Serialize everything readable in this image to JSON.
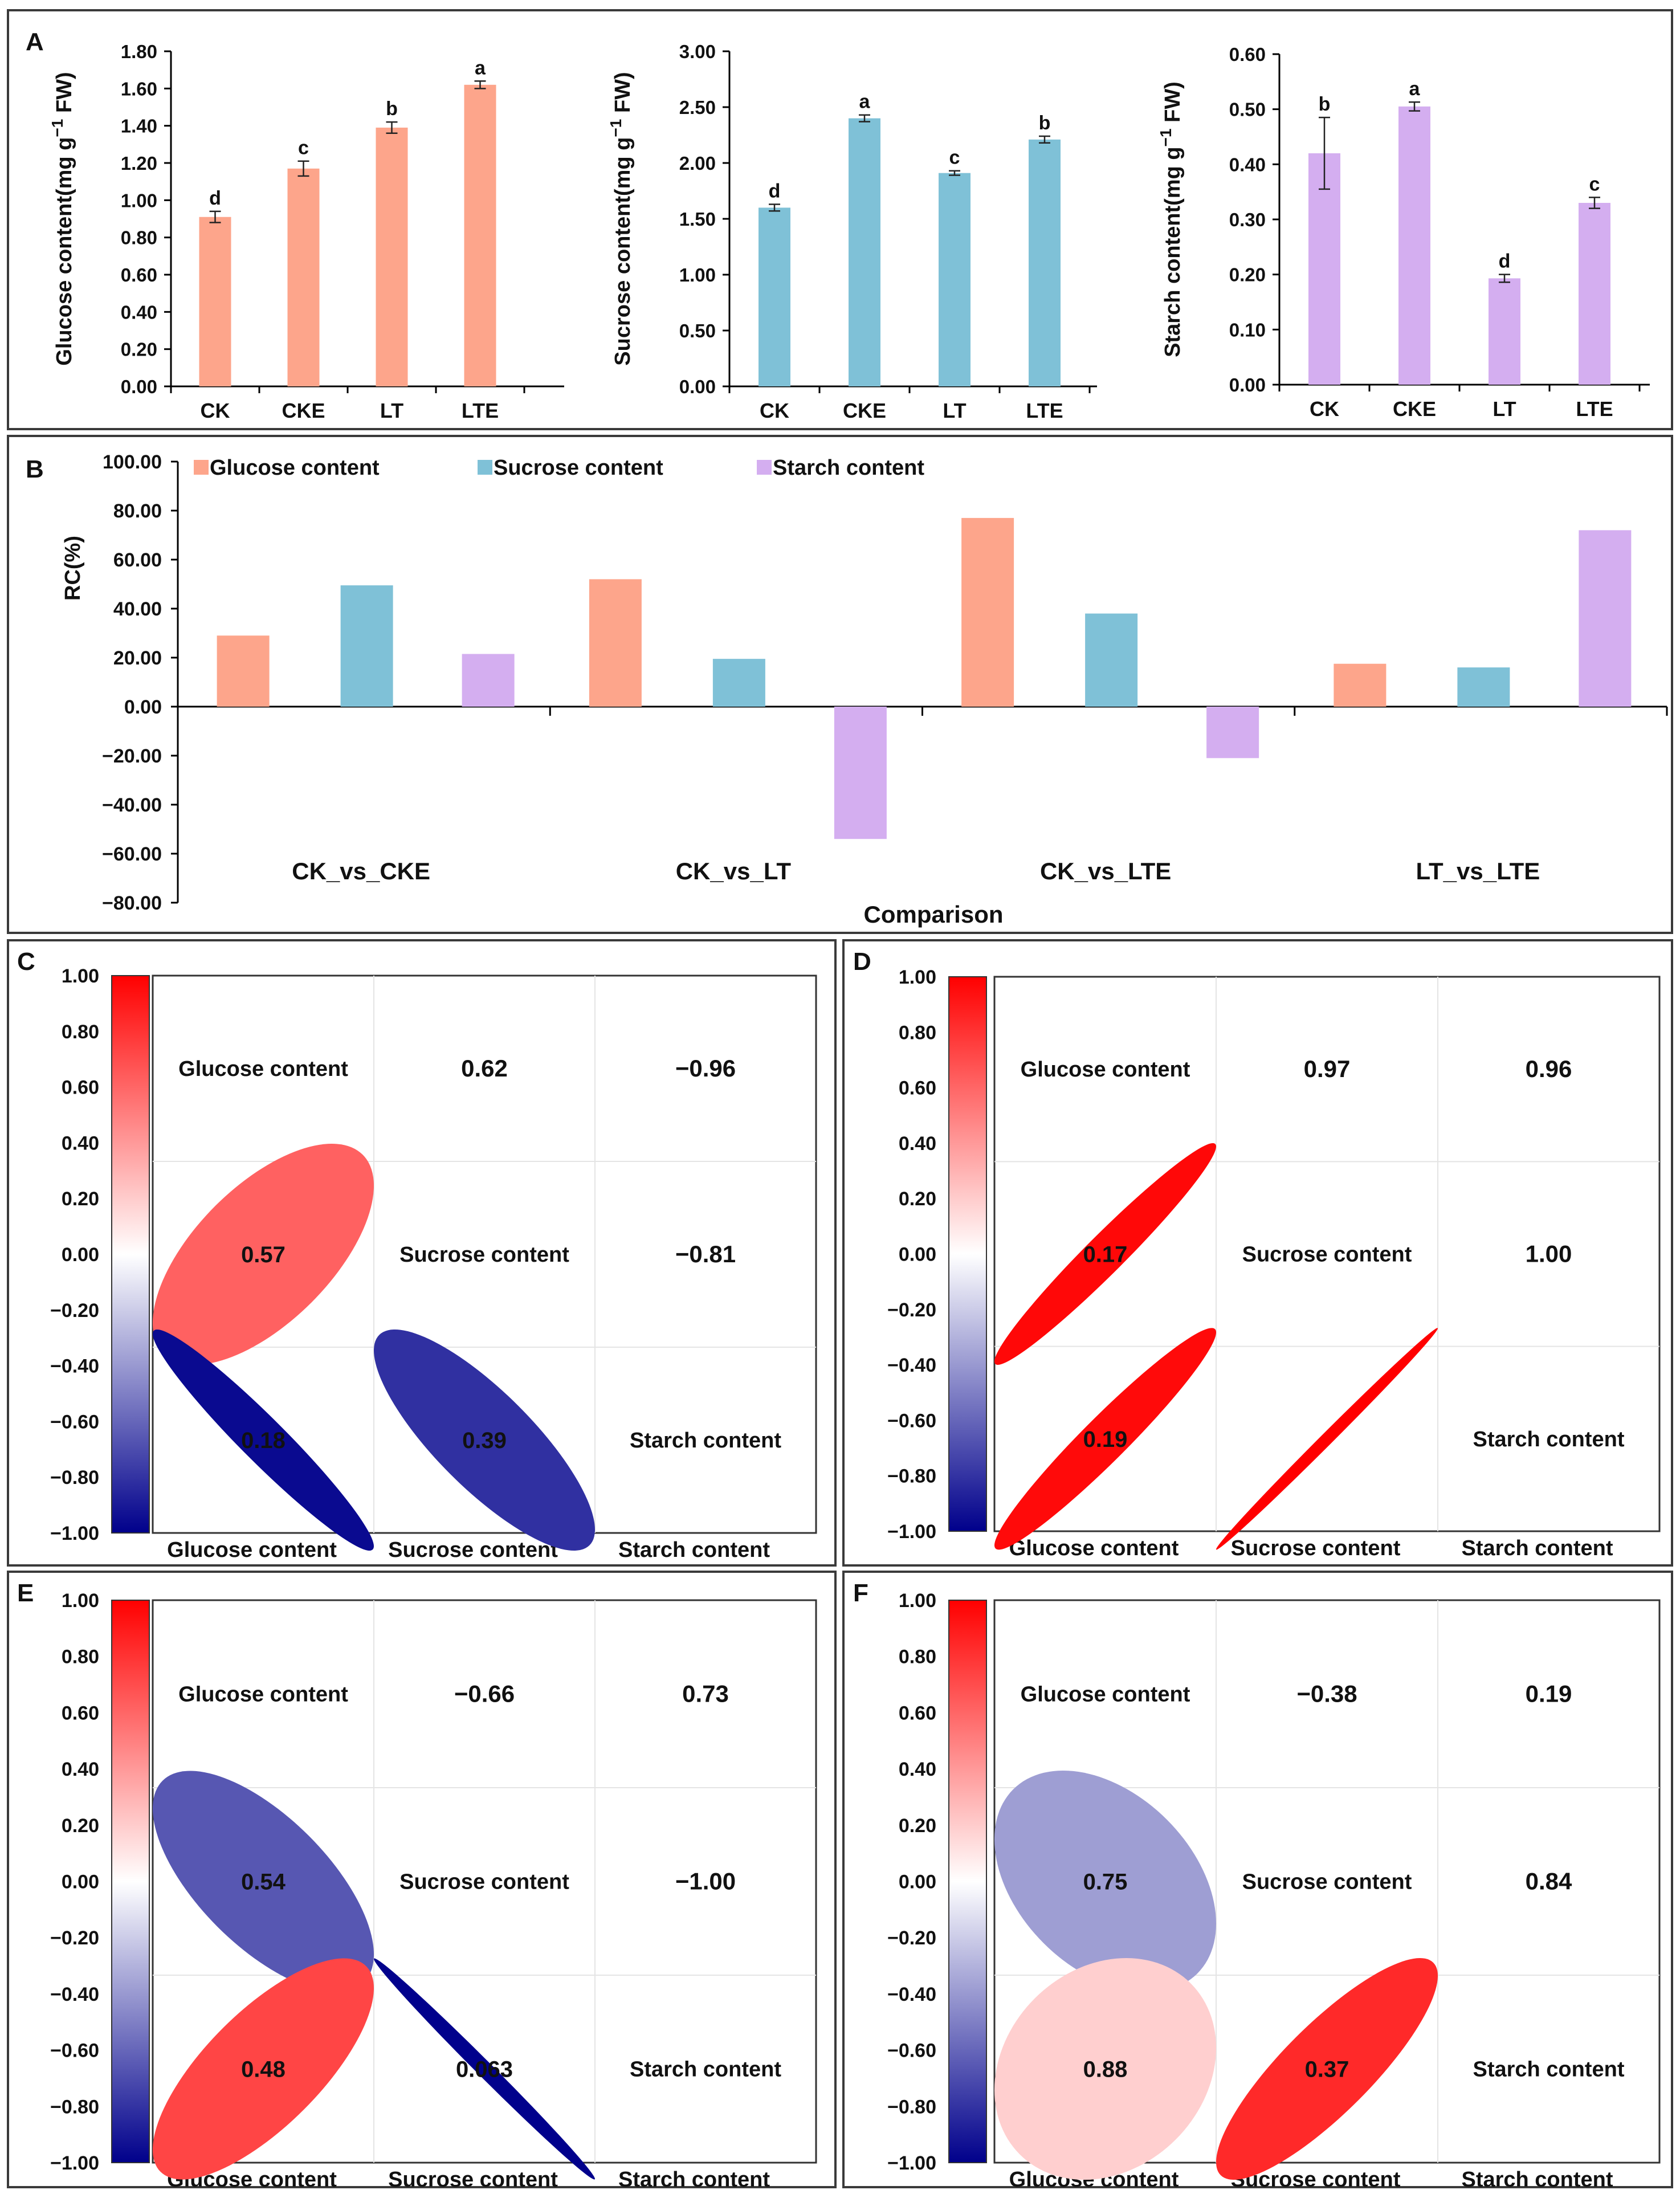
{
  "colors": {
    "glucose": "#fda58b",
    "sucrose": "#7fc1d7",
    "starch": "#d4aef0",
    "frame": "#3a3a3a",
    "scale_neg": "#00008b",
    "scale_mid": "#ffffff",
    "scale_pos": "#ff0000"
  },
  "panel_labels": [
    "A",
    "B",
    "C",
    "D",
    "E",
    "F"
  ],
  "chart_data": [
    {
      "panel": "A",
      "type": "bar",
      "ylabel": "Glucose content(mg g",
      "ylabel_sup": "−1",
      "ylabel_tail": " FW)",
      "categories": [
        "CK",
        "CKE",
        "LT",
        "LTE"
      ],
      "values": [
        0.91,
        1.17,
        1.39,
        1.62
      ],
      "errors": [
        0.03,
        0.04,
        0.03,
        0.02
      ],
      "letters": [
        "d",
        "c",
        "b",
        "a"
      ],
      "ylim": [
        0,
        1.8
      ],
      "ticks": [
        0,
        0.2,
        0.4,
        0.6,
        0.8,
        1.0,
        1.2,
        1.4,
        1.6,
        1.8
      ],
      "color_key": "glucose"
    },
    {
      "panel": "A",
      "type": "bar",
      "ylabel": "Sucrose content(mg g",
      "ylabel_sup": "−1",
      "ylabel_tail": " FW)",
      "categories": [
        "CK",
        "CKE",
        "LT",
        "LTE"
      ],
      "values": [
        1.6,
        2.4,
        1.91,
        2.21
      ],
      "errors": [
        0.03,
        0.03,
        0.02,
        0.03
      ],
      "letters": [
        "d",
        "a",
        "c",
        "b"
      ],
      "ylim": [
        0,
        3.0
      ],
      "ticks": [
        0,
        0.5,
        1.0,
        1.5,
        2.0,
        2.5,
        3.0
      ],
      "color_key": "sucrose"
    },
    {
      "panel": "A",
      "type": "bar",
      "ylabel": "Starch content(mg g",
      "ylabel_sup": "−1",
      "ylabel_tail": " FW)",
      "categories": [
        "CK",
        "CKE",
        "LT",
        "LTE"
      ],
      "values": [
        0.42,
        0.505,
        0.193,
        0.33
      ],
      "errors": [
        0.065,
        0.008,
        0.007,
        0.01
      ],
      "letters": [
        "b",
        "a",
        "d",
        "c"
      ],
      "ylim": [
        0,
        0.6
      ],
      "ticks": [
        0,
        0.1,
        0.2,
        0.3,
        0.4,
        0.5,
        0.6
      ],
      "color_key": "starch"
    },
    {
      "panel": "B",
      "type": "bar",
      "ylabel": "RC(%)",
      "xlabel": "Comparison",
      "categories": [
        "CK_vs_CKE",
        "CK_vs_LT",
        "CK_vs_LTE",
        "LT_vs_LTE"
      ],
      "series": [
        {
          "name": "Glucose content",
          "color_key": "glucose",
          "values": [
            29,
            52,
            77,
            17.5
          ]
        },
        {
          "name": "Sucrose content",
          "color_key": "sucrose",
          "values": [
            49.5,
            19.5,
            38,
            16
          ]
        },
        {
          "name": "Starch content",
          "color_key": "starch",
          "values": [
            21.5,
            -54,
            -21,
            72
          ]
        }
      ],
      "ylim": [
        -80,
        100
      ],
      "ticks": [
        -80,
        -60,
        -40,
        -20,
        0,
        20,
        40,
        60,
        80,
        100
      ],
      "legend": "top"
    },
    {
      "panel": "C",
      "type": "heatmap",
      "variables": [
        "Glucose content",
        "Sucrose content",
        "Starch content"
      ],
      "upper": [
        {
          "row": 0,
          "col": 1,
          "text": "0.62",
          "r": 0.62
        },
        {
          "row": 0,
          "col": 2,
          "text": "−0.96",
          "r": -0.96
        },
        {
          "row": 1,
          "col": 2,
          "text": "−0.81",
          "r": -0.81
        }
      ],
      "lower": [
        {
          "row": 1,
          "col": 0,
          "text": "0.57",
          "r": 0.62
        },
        {
          "row": 2,
          "col": 0,
          "text": "0.18",
          "r": -0.96
        },
        {
          "row": 2,
          "col": 1,
          "text": "0.39",
          "r": -0.81
        }
      ],
      "scale_ticks": [
        "1.00",
        "0.80",
        "0.60",
        "0.40",
        "0.20",
        "0.00",
        "−0.20",
        "−0.40",
        "−0.60",
        "−0.80",
        "−1.00"
      ]
    },
    {
      "panel": "D",
      "type": "heatmap",
      "variables": [
        "Glucose content",
        "Sucrose content",
        "Starch content"
      ],
      "upper": [
        {
          "row": 0,
          "col": 1,
          "text": "0.97",
          "r": 0.97
        },
        {
          "row": 0,
          "col": 2,
          "text": "0.96",
          "r": 0.96
        },
        {
          "row": 1,
          "col": 2,
          "text": "1.00",
          "r": 1.0
        }
      ],
      "lower": [
        {
          "row": 1,
          "col": 0,
          "text": "0.17",
          "r": 0.97
        },
        {
          "row": 2,
          "col": 0,
          "text": "0.19",
          "r": 0.96
        },
        {
          "row": 2,
          "col": 1,
          "text": "",
          "r": 1.0
        }
      ],
      "scale_ticks": [
        "1.00",
        "0.80",
        "0.60",
        "0.40",
        "0.20",
        "0.00",
        "−0.20",
        "−0.40",
        "−0.60",
        "−0.80",
        "−1.00"
      ]
    },
    {
      "panel": "E",
      "type": "heatmap",
      "variables": [
        "Glucose content",
        "Sucrose content",
        "Starch content"
      ],
      "upper": [
        {
          "row": 0,
          "col": 1,
          "text": "−0.66",
          "r": -0.66
        },
        {
          "row": 0,
          "col": 2,
          "text": "0.73",
          "r": 0.73
        },
        {
          "row": 1,
          "col": 2,
          "text": "−1.00",
          "r": -1.0
        }
      ],
      "lower": [
        {
          "row": 1,
          "col": 0,
          "text": "0.54",
          "r": -0.66
        },
        {
          "row": 2,
          "col": 0,
          "text": "0.48",
          "r": 0.73
        },
        {
          "row": 2,
          "col": 1,
          "text": "0.063",
          "r": -0.995
        }
      ],
      "scale_ticks": [
        "1.00",
        "0.80",
        "0.60",
        "0.40",
        "0.20",
        "0.00",
        "−0.20",
        "−0.40",
        "−0.60",
        "−0.80",
        "−1.00"
      ]
    },
    {
      "panel": "F",
      "type": "heatmap",
      "variables": [
        "Glucose content",
        "Sucrose content",
        "Starch content"
      ],
      "upper": [
        {
          "row": 0,
          "col": 1,
          "text": "−0.38",
          "r": -0.38
        },
        {
          "row": 0,
          "col": 2,
          "text": "0.19",
          "r": 0.19
        },
        {
          "row": 1,
          "col": 2,
          "text": "0.84",
          "r": 0.84
        }
      ],
      "lower": [
        {
          "row": 1,
          "col": 0,
          "text": "0.75",
          "r": -0.38
        },
        {
          "row": 2,
          "col": 0,
          "text": "0.88",
          "r": 0.19
        },
        {
          "row": 2,
          "col": 1,
          "text": "0.37",
          "r": 0.84
        }
      ],
      "scale_ticks": [
        "1.00",
        "0.80",
        "0.60",
        "0.40",
        "0.20",
        "0.00",
        "−0.20",
        "−0.40",
        "−0.60",
        "−0.80",
        "−1.00"
      ]
    }
  ]
}
